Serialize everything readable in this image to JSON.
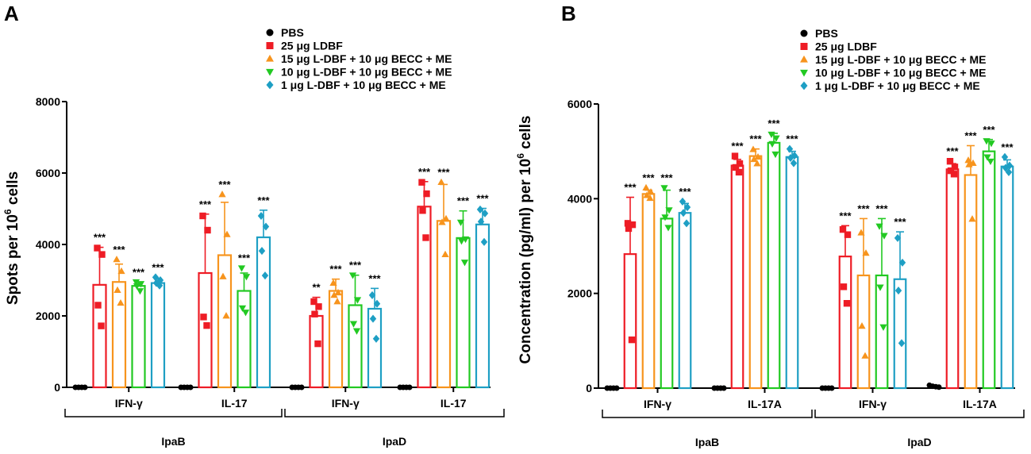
{
  "legend_labels": [
    "PBS",
    "25 μg LDBF",
    "15 μg L-DBF + 10 μg BECC + ME",
    "10 μg L-DBF + 10 μg BECC + ME",
    "1 μg L-DBF + 10 μg BECC + ME"
  ],
  "colors": [
    "#000000",
    "#ee1c25",
    "#f7941d",
    "#22c922",
    "#1e9fc4"
  ],
  "markers": [
    "circle",
    "square",
    "triangle-up",
    "triangle-down",
    "diamond"
  ],
  "chart_data": [
    {
      "type": "bar",
      "panel_label": "A",
      "ylabel": "Spots per 10",
      "ylabel_sup": "6",
      "ylabel_suffix": " cells",
      "ylim": [
        0,
        8000
      ],
      "yticks": [
        0,
        2000,
        4000,
        6000,
        8000
      ],
      "ytick_labels": [
        "0",
        "2000",
        "4000",
        "6000",
        "8000"
      ],
      "groups": [
        {
          "label": "IFN-γ",
          "values": [
            0,
            2870,
            2950,
            2840,
            2920
          ],
          "errors": [
            0,
            1050,
            500,
            100,
            130
          ],
          "points": [
            [
              0,
              0,
              0,
              0
            ],
            [
              3900,
              3720,
              2300,
              1720
            ],
            [
              3580,
              3250,
              2720,
              2360
            ],
            [
              2950,
              2900,
              2840,
              2700
            ],
            [
              3080,
              3000,
              2920,
              2850
            ]
          ],
          "stars": [
            "",
            "***",
            "***",
            "***",
            "***"
          ]
        },
        {
          "label": "IL-17",
          "values": [
            0,
            3200,
            3700,
            2700,
            4200
          ],
          "errors": [
            0,
            1650,
            1480,
            500,
            760
          ],
          "points": [
            [
              0,
              0,
              0,
              0
            ],
            [
              4800,
              4400,
              1970,
              1730
            ],
            [
              5400,
              4280,
              3100,
              2000
            ],
            [
              3340,
              3100,
              2220,
              2100
            ],
            [
              4800,
              4500,
              3820,
              3130
            ]
          ],
          "stars": [
            "",
            "***",
            "***",
            "***",
            "***"
          ]
        },
        {
          "label": "IFN-γ",
          "values": [
            0,
            2000,
            2700,
            2300,
            2200
          ],
          "errors": [
            0,
            520,
            330,
            840,
            570
          ],
          "points": [
            [
              0,
              0,
              0,
              0
            ],
            [
              2400,
              2260,
              2050,
              1220
            ],
            [
              2920,
              2650,
              2580,
              2400
            ],
            [
              3140,
              2450,
              1780,
              1580
            ],
            [
              2580,
              2340,
              1920,
              1360
            ]
          ],
          "stars": [
            "",
            "**",
            "***",
            "***",
            "***"
          ]
        },
        {
          "label": "IL-17",
          "values": [
            0,
            5060,
            4660,
            4180,
            4560
          ],
          "errors": [
            0,
            700,
            1020,
            760,
            450
          ],
          "points": [
            [
              0,
              0,
              0,
              0
            ],
            [
              5740,
              5420,
              4950,
              4190
            ],
            [
              5740,
              4720,
              4620,
              3720
            ],
            [
              4620,
              4150,
              4100,
              3500
            ],
            [
              4980,
              4870,
              4640,
              4070
            ]
          ],
          "stars": [
            "",
            "***",
            "***",
            "***",
            "***"
          ]
        }
      ],
      "categories_outer": [
        "IpaB",
        "IpaD"
      ]
    },
    {
      "type": "bar",
      "panel_label": "B",
      "ylabel": "Concentration (pg/ml) per 10",
      "ylabel_sup": "6",
      "ylabel_suffix": " cells",
      "ylim": [
        0,
        6000
      ],
      "yticks": [
        0,
        2000,
        4000,
        6000
      ],
      "ytick_labels": [
        "0",
        "2000",
        "4000",
        "6000"
      ],
      "groups": [
        {
          "label": "IFN-γ",
          "values": [
            0,
            2830,
            4100,
            3580,
            3700
          ],
          "errors": [
            0,
            1200,
            80,
            600,
            200
          ],
          "points": [
            [
              0,
              0,
              0,
              0
            ],
            [
              3480,
              3450,
              3370,
              1020
            ],
            [
              4230,
              4140,
              4070,
              4010
            ],
            [
              4230,
              3760,
              3610,
              3390
            ],
            [
              3940,
              3820,
              3700,
              3480
            ]
          ],
          "stars": [
            "",
            "***",
            "***",
            "***",
            "***"
          ]
        },
        {
          "label": "IL-17A",
          "values": [
            0,
            4700,
            4900,
            5180,
            4880
          ],
          "errors": [
            0,
            130,
            150,
            200,
            120
          ],
          "points": [
            [
              0,
              0,
              0,
              0
            ],
            [
              4900,
              4740,
              4660,
              4560
            ],
            [
              5040,
              4880,
              4830,
              4740
            ],
            [
              5360,
              5280,
              5160,
              4940
            ],
            [
              5050,
              4910,
              4860,
              4750
            ]
          ],
          "stars": [
            "",
            "***",
            "***",
            "***",
            "***"
          ]
        },
        {
          "label": "IFN-γ",
          "values": [
            0,
            2780,
            2380,
            2380,
            2300
          ],
          "errors": [
            0,
            650,
            1200,
            1200,
            1000
          ],
          "points": [
            [
              0,
              0,
              0,
              0
            ],
            [
              3350,
              3240,
              2140,
              1790
            ],
            [
              3280,
              2850,
              1310,
              680
            ],
            [
              3420,
              3220,
              2130,
              1290
            ],
            [
              3170,
              2650,
              2060,
              950
            ]
          ],
          "stars": [
            "",
            "***",
            "***",
            "***",
            "***"
          ]
        },
        {
          "label": "IL-17A",
          "values": [
            50,
            4620,
            4500,
            5000,
            4680
          ],
          "errors": [
            0,
            120,
            620,
            250,
            140
          ],
          "points": [
            [
              60,
              40,
              30,
              20
            ],
            [
              4790,
              4670,
              4590,
              4520
            ],
            [
              4810,
              4750,
              4720,
              3570
            ],
            [
              5220,
              5170,
              4880,
              4790
            ],
            [
              4880,
              4700,
              4650,
              4560
            ]
          ],
          "stars": [
            "",
            "***",
            "***",
            "***",
            "***"
          ]
        }
      ],
      "categories_outer": [
        "IpaB",
        "IpaD"
      ]
    }
  ]
}
